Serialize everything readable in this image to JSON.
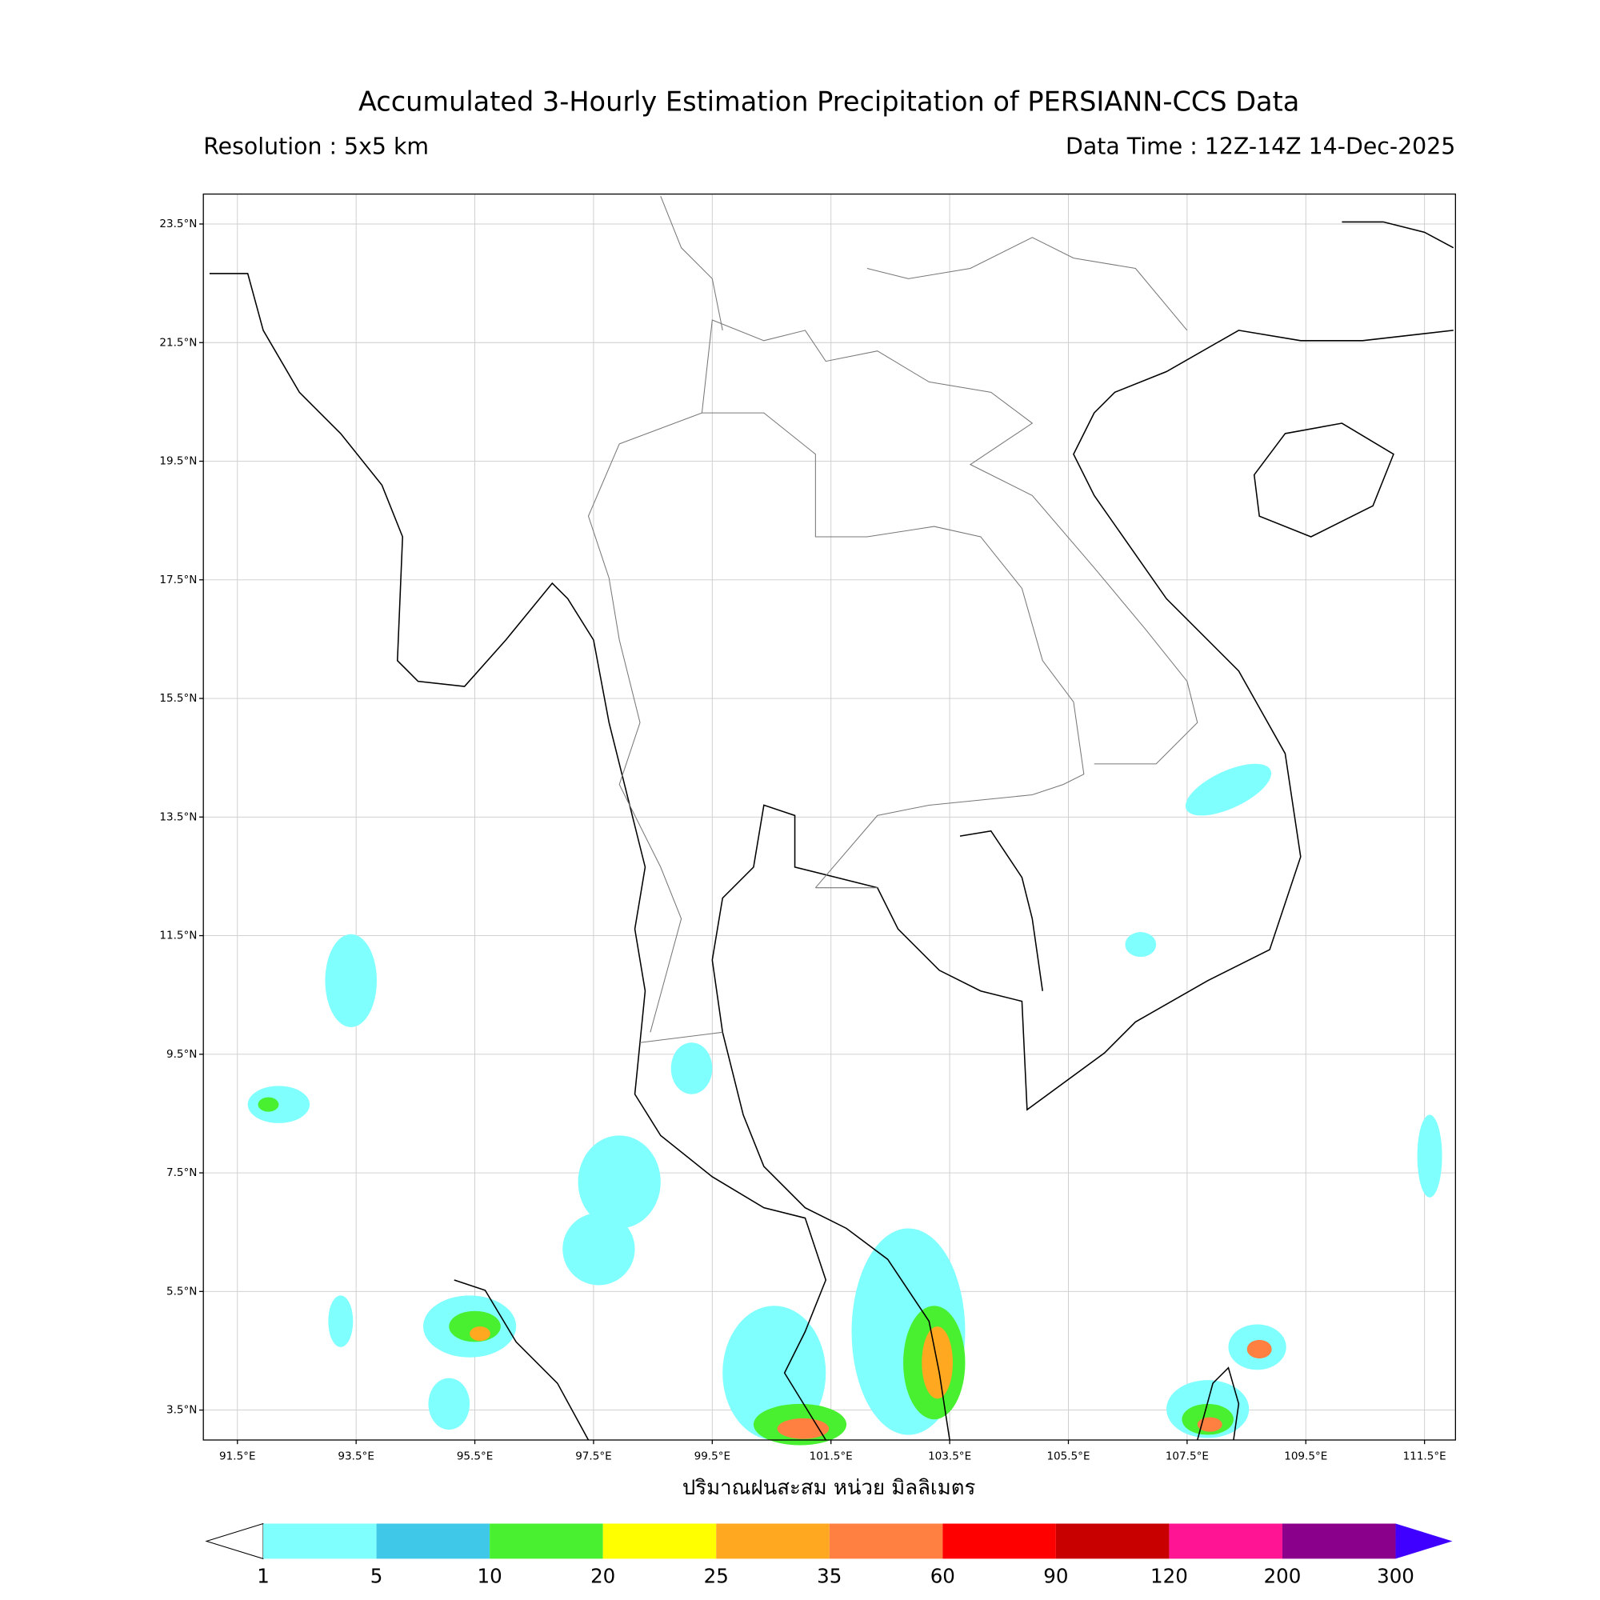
{
  "header": {
    "title": "Accumulated 3-Hourly Estimation Precipitation of PERSIANN-CCS Data",
    "resolution": "Resolution : 5x5 km",
    "data_time": "Data Time : 12Z-14Z 14-Dec-2025"
  },
  "map": {
    "lon_ticks": [
      "91.5°E",
      "93.5°E",
      "95.5°E",
      "97.5°E",
      "99.5°E",
      "101.5°E",
      "103.5°E",
      "105.5°E",
      "107.5°E",
      "109.5°E",
      "111.5°E"
    ],
    "lat_ticks": [
      "23.5°N",
      "21.5°N",
      "19.5°N",
      "17.5°N",
      "15.5°N",
      "13.5°N",
      "11.5°N",
      "9.5°N",
      "7.5°N",
      "5.5°N",
      "3.5°N"
    ],
    "x_label": "ปริมาณฝนสะสม หน่วย มิลลิเมตร"
  },
  "colorbar": {
    "levels": [
      1,
      5,
      10,
      20,
      25,
      35,
      60,
      90,
      120,
      200,
      300
    ],
    "colors": [
      "#80ffff",
      "#40c8e8",
      "#48f030",
      "#ffff00",
      "#ffa820",
      "#ff8040",
      "#ff0000",
      "#c80000",
      "#ff1493",
      "#8b008b",
      "#4000ff"
    ]
  }
}
